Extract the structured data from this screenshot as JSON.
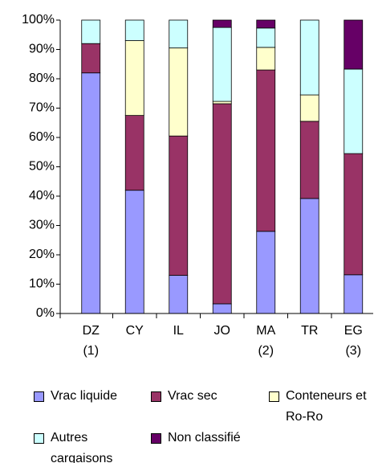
{
  "chart_data": {
    "type": "stacked_bar",
    "categories": [
      "DZ",
      "CY",
      "IL",
      "JO",
      "MA",
      "TR",
      "EG"
    ],
    "category_notes": [
      "(1)",
      null,
      null,
      null,
      "(2)",
      null,
      "(3)"
    ],
    "series": [
      {
        "name": "Vrac liquide",
        "color": "#9999ff",
        "values": [
          82,
          42,
          13,
          3.3,
          28,
          39.2,
          13.2
        ]
      },
      {
        "name": "Vrac sec",
        "color": "#993366",
        "values": [
          10,
          25.5,
          47.5,
          68.2,
          55,
          26.3,
          41.3
        ]
      },
      {
        "name": "Conteneurs et Ro-Ro",
        "color": "#ffffcc",
        "values": [
          0,
          25.5,
          30,
          0.8,
          7.7,
          9,
          0
        ]
      },
      {
        "name": "Autres cargaisons",
        "color": "#ccffff",
        "values": [
          8,
          7,
          9.5,
          25.2,
          6.6,
          25.5,
          28.8
        ]
      },
      {
        "name": "Non classifié",
        "color": "#660066",
        "values": [
          0,
          0,
          0,
          2.5,
          2.7,
          0,
          16.7
        ]
      }
    ],
    "ylim": [
      0,
      100
    ],
    "yticks": [
      {
        "value": 0,
        "label": "0%"
      },
      {
        "value": 10,
        "label": "10%"
      },
      {
        "value": 20,
        "label": "20%"
      },
      {
        "value": 30,
        "label": "30%"
      },
      {
        "value": 40,
        "label": "40%"
      },
      {
        "value": 50,
        "label": "50%"
      },
      {
        "value": 60,
        "label": "60%"
      },
      {
        "value": 70,
        "label": "70%"
      },
      {
        "value": 80,
        "label": "80%"
      },
      {
        "value": 90,
        "label": "90%"
      },
      {
        "value": 100,
        "label": "100%"
      }
    ]
  }
}
